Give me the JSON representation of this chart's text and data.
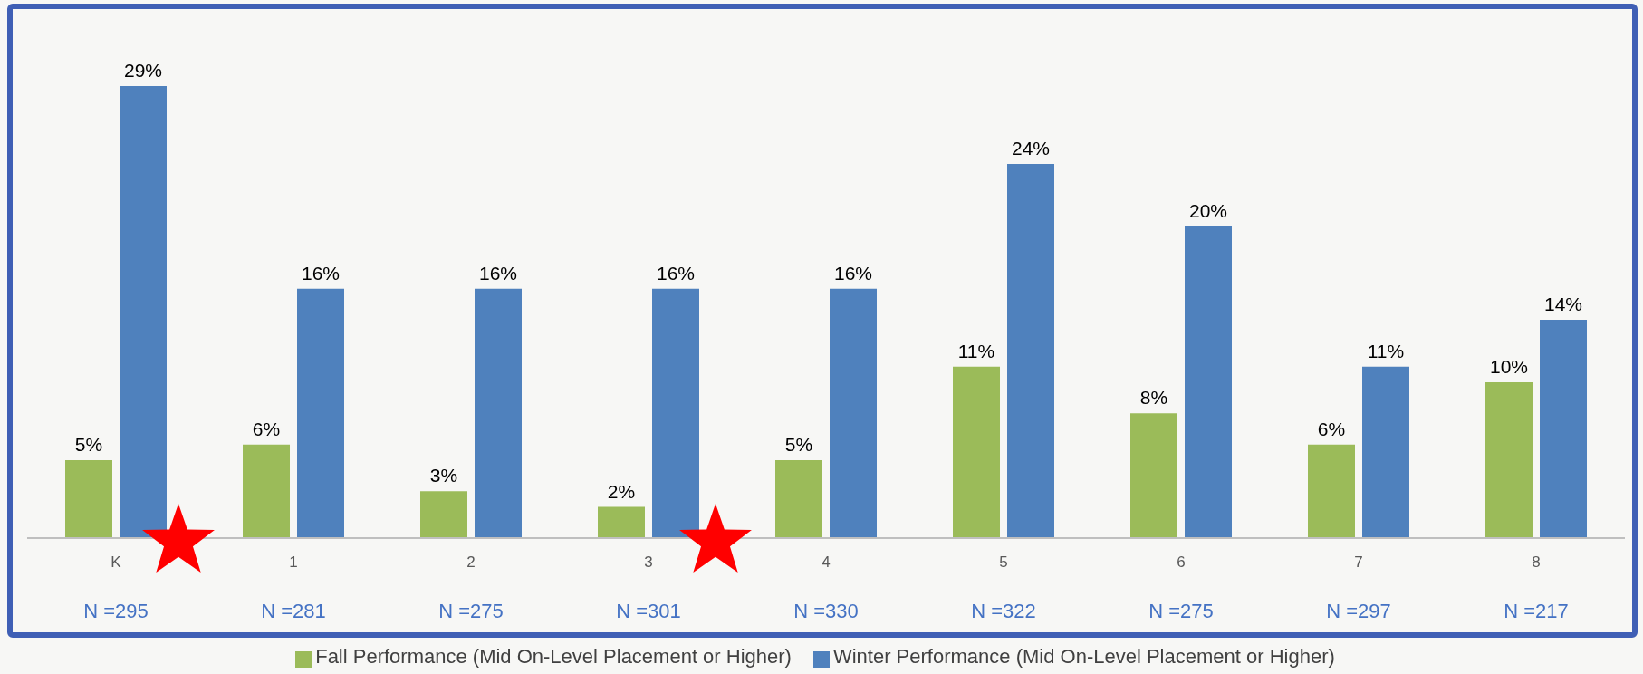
{
  "chart_data": {
    "type": "bar",
    "categories": [
      "K",
      "1",
      "2",
      "3",
      "4",
      "5",
      "6",
      "7",
      "8"
    ],
    "series": [
      {
        "name": "Fall Performance (Mid On-Level Placement or Higher)",
        "color": "#9bbb59",
        "values": [
          5,
          6,
          3,
          2,
          5,
          11,
          8,
          6,
          10
        ],
        "value_labels": [
          "5%",
          "6%",
          "3%",
          "2%",
          "5%",
          "11%",
          "8%",
          "6%",
          "10%"
        ]
      },
      {
        "name": "Winter Performance (Mid On-Level Placement or Higher)",
        "color": "#4f81bd",
        "values": [
          29,
          16,
          16,
          16,
          16,
          24,
          20,
          11,
          14
        ],
        "value_labels": [
          "29%",
          "16%",
          "16%",
          "16%",
          "16%",
          "24%",
          "20%",
          "11%",
          "14%"
        ]
      }
    ],
    "annotations": [
      "N =295",
      "N =281",
      "N =275",
      "N =301",
      "N =330",
      "N =322",
      "N =275",
      "N =297",
      "N =217"
    ],
    "legend": "bottom",
    "grid": false
  }
}
